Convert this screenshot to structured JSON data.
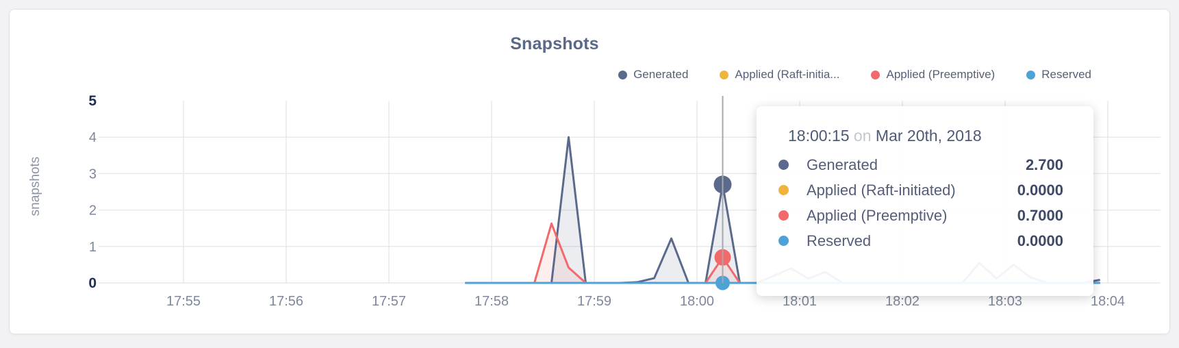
{
  "page": {
    "background": "#f2f2f4",
    "card_background": "#ffffff"
  },
  "chart_data": {
    "type": "line",
    "title": "Snapshots",
    "xlabel": "",
    "ylabel": "snapshots",
    "legend_position": "top-right",
    "grid": true,
    "axis": {
      "x": {
        "ticks": [
          {
            "label": "17:55",
            "time": "17:55"
          },
          {
            "label": "17:56",
            "time": "17:56"
          },
          {
            "label": "17:57",
            "time": "17:57"
          },
          {
            "label": "17:58",
            "time": "17:58"
          },
          {
            "label": "17:59",
            "time": "17:59"
          },
          {
            "label": "18:00",
            "time": "18:00"
          },
          {
            "label": "18:01",
            "time": "18:01"
          },
          {
            "label": "18:02",
            "time": "18:02"
          },
          {
            "label": "18:03",
            "time": "18:03"
          },
          {
            "label": "18:04",
            "time": "18:04"
          }
        ],
        "visible_range": [
          "17:54:15",
          "18:04:30"
        ]
      },
      "y": {
        "ticks": [
          {
            "label": "5",
            "value": 5,
            "bold": true
          },
          {
            "label": "4",
            "value": 4,
            "bold": false
          },
          {
            "label": "3",
            "value": 3,
            "bold": false
          },
          {
            "label": "2",
            "value": 2,
            "bold": false
          },
          {
            "label": "1",
            "value": 1,
            "bold": false
          },
          {
            "label": "0",
            "value": 0,
            "bold": true
          }
        ],
        "gridline_values": [
          0,
          1,
          2,
          3,
          4
        ],
        "range": [
          0,
          5
        ]
      }
    },
    "series": [
      {
        "id": "generated",
        "name": "Generated",
        "color": "#5b6a8c",
        "fill_opacity": 0.12,
        "points": [
          [
            "17:57:45",
            0
          ],
          [
            "17:58:35",
            0
          ],
          [
            "17:58:45",
            4.0
          ],
          [
            "17:58:55",
            0
          ],
          [
            "17:59:15",
            0
          ],
          [
            "17:59:25",
            0.02
          ],
          [
            "17:59:35",
            0.13
          ],
          [
            "17:59:45",
            1.22
          ],
          [
            "17:59:55",
            0
          ],
          [
            "18:00:05",
            0
          ],
          [
            "18:00:15",
            2.7
          ],
          [
            "18:00:25",
            0
          ],
          [
            "18:00:35",
            0
          ],
          [
            "18:00:45",
            0.2
          ],
          [
            "18:00:55",
            0.4
          ],
          [
            "18:01:05",
            0.12
          ],
          [
            "18:01:15",
            0.3
          ],
          [
            "18:01:25",
            0
          ],
          [
            "18:02:35",
            0
          ],
          [
            "18:02:45",
            0.55
          ],
          [
            "18:02:55",
            0.12
          ],
          [
            "18:03:05",
            0.5
          ],
          [
            "18:03:15",
            0.15
          ],
          [
            "18:03:25",
            0
          ],
          [
            "18:03:45",
            0
          ],
          [
            "18:03:55",
            0.08
          ]
        ]
      },
      {
        "id": "raft",
        "name": "Applied (Raft-initiated)",
        "color": "#f0b43c",
        "fill_opacity": 0,
        "points": [
          [
            "17:57:45",
            0
          ],
          [
            "18:03:55",
            0
          ]
        ]
      },
      {
        "id": "preemptive",
        "name": "Applied (Preemptive)",
        "color": "#f2696c",
        "fill_opacity": 0.11,
        "points": [
          [
            "17:57:45",
            0
          ],
          [
            "17:58:25",
            0
          ],
          [
            "17:58:35",
            1.63
          ],
          [
            "17:58:45",
            0.42
          ],
          [
            "17:58:55",
            0
          ],
          [
            "18:00:05",
            0
          ],
          [
            "18:00:15",
            0.7
          ],
          [
            "18:00:25",
            0
          ],
          [
            "18:03:55",
            0
          ]
        ]
      },
      {
        "id": "reserved",
        "name": "Reserved",
        "color": "#4da3d8",
        "fill_opacity": 0,
        "points": [
          [
            "17:57:45",
            0
          ],
          [
            "18:03:55",
            0
          ]
        ]
      }
    ],
    "crosshair": {
      "time": "18:00:15",
      "color": "#a7a7ad"
    },
    "hover": {
      "time": "18:00:15",
      "points": [
        {
          "series": "generated",
          "value": 2.7,
          "r": 13
        },
        {
          "series": "preemptive",
          "value": 0.7,
          "r": 12
        },
        {
          "series": "reserved",
          "value": 0,
          "r": 10.5
        }
      ]
    }
  },
  "legend": {
    "items": [
      {
        "label": "Generated",
        "color": "#5b6a8c"
      },
      {
        "label": "Applied (Raft-initia...",
        "color": "#f0b43c"
      },
      {
        "label": "Applied (Preemptive)",
        "color": "#f2696c"
      },
      {
        "label": "Reserved",
        "color": "#4da3d8"
      }
    ]
  },
  "tooltip": {
    "time": "18:00:15",
    "conj": "on",
    "date": "Mar 20th, 2018",
    "rows": [
      {
        "label": "Generated",
        "value": "2.700",
        "color": "#5b6a8c"
      },
      {
        "label": "Applied (Raft-initiated)",
        "value": "0.0000",
        "color": "#f0b43c"
      },
      {
        "label": "Applied (Preemptive)",
        "value": "0.7000",
        "color": "#f2696c"
      },
      {
        "label": "Reserved",
        "value": "0.0000",
        "color": "#4da3d8"
      }
    ]
  }
}
